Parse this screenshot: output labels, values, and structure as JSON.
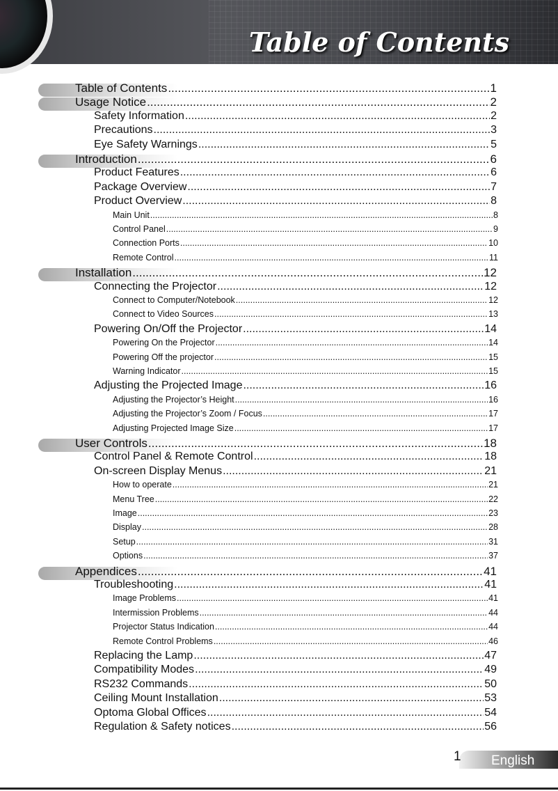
{
  "header": {
    "title": "Table of Contents"
  },
  "entries": [
    {
      "level": 1,
      "label": "Table of Contents",
      "page": "1"
    },
    {
      "level": 1,
      "label": "Usage Notice",
      "page": "2"
    },
    {
      "level": 2,
      "label": "Safety Information",
      "page": "2"
    },
    {
      "level": 2,
      "label": "Precautions",
      "page": "3"
    },
    {
      "level": 2,
      "label": "Eye Safety Warnings",
      "page": "5"
    },
    {
      "level": 1,
      "label": "Introduction",
      "page": "6"
    },
    {
      "level": 2,
      "label": "Product Features",
      "page": "6"
    },
    {
      "level": 2,
      "label": "Package Overview",
      "page": "7"
    },
    {
      "level": 2,
      "label": "Product Overview",
      "page": "8"
    },
    {
      "level": 3,
      "label": "Main Unit",
      "page": "8"
    },
    {
      "level": 3,
      "label": "Control Panel",
      "page": "9"
    },
    {
      "level": 3,
      "label": "Connection Ports",
      "page": "10"
    },
    {
      "level": 3,
      "label": "Remote Control",
      "page": "11"
    },
    {
      "level": 1,
      "label": "Installation",
      "page": "12"
    },
    {
      "level": 2,
      "label": "Connecting the Projector",
      "page": "12"
    },
    {
      "level": 3,
      "label": "Connect to Computer/Notebook",
      "page": "12"
    },
    {
      "level": 3,
      "label": "Connect to Video Sources",
      "page": "13"
    },
    {
      "level": 2,
      "label": "Powering On/Off the Projector",
      "page": "14"
    },
    {
      "level": 3,
      "label": "Powering On the Projector",
      "page": "14"
    },
    {
      "level": 3,
      "label": "Powering Off the projector",
      "page": "15"
    },
    {
      "level": 3,
      "label": "Warning Indicator",
      "page": "15"
    },
    {
      "level": 2,
      "label": "Adjusting the Projected Image",
      "page": "16"
    },
    {
      "level": 3,
      "label": "Adjusting the Projector’s Height",
      "page": "16"
    },
    {
      "level": 3,
      "label": "Adjusting the Projector’s Zoom / Focus",
      "page": "17"
    },
    {
      "level": 3,
      "label": "Adjusting Projected Image Size",
      "page": "17"
    },
    {
      "level": 1,
      "label": "User Controls",
      "page": "18"
    },
    {
      "level": 2,
      "label": "Control Panel & Remote Control",
      "page": "18"
    },
    {
      "level": 2,
      "label": "On-screen Display Menus",
      "page": "21"
    },
    {
      "level": 3,
      "label": "How to operate",
      "page": "21"
    },
    {
      "level": 3,
      "label": "Menu Tree",
      "page": "22"
    },
    {
      "level": 3,
      "label": "Image",
      "page": "23"
    },
    {
      "level": 3,
      "label": "Display",
      "page": "28"
    },
    {
      "level": 3,
      "label": "Setup",
      "page": "31"
    },
    {
      "level": 3,
      "label": "Options",
      "page": "37"
    },
    {
      "level": 1,
      "label": "Appendices",
      "page": "41"
    },
    {
      "level": 2,
      "label": "Troubleshooting",
      "page": "41"
    },
    {
      "level": 3,
      "label": "Image Problems",
      "page": "41"
    },
    {
      "level": 3,
      "label": "Intermission Problems",
      "page": "44"
    },
    {
      "level": 3,
      "label": "Projector Status Indication",
      "page": "44"
    },
    {
      "level": 3,
      "label": "Remote Control Problems",
      "page": "46"
    },
    {
      "level": 2,
      "label": "Replacing the Lamp",
      "page": "47"
    },
    {
      "level": 2,
      "label": "Compatibility Modes",
      "page": "49"
    },
    {
      "level": 2,
      "label": "RS232 Commands",
      "page": "50"
    },
    {
      "level": 2,
      "label": "Ceiling Mount Installation",
      "page": "53"
    },
    {
      "level": 2,
      "label": "Optoma Global Offices",
      "page": "54"
    },
    {
      "level": 2,
      "label": "Regulation & Safety notices",
      "page": "56"
    }
  ],
  "footer": {
    "page_number": "1",
    "language": "English"
  }
}
